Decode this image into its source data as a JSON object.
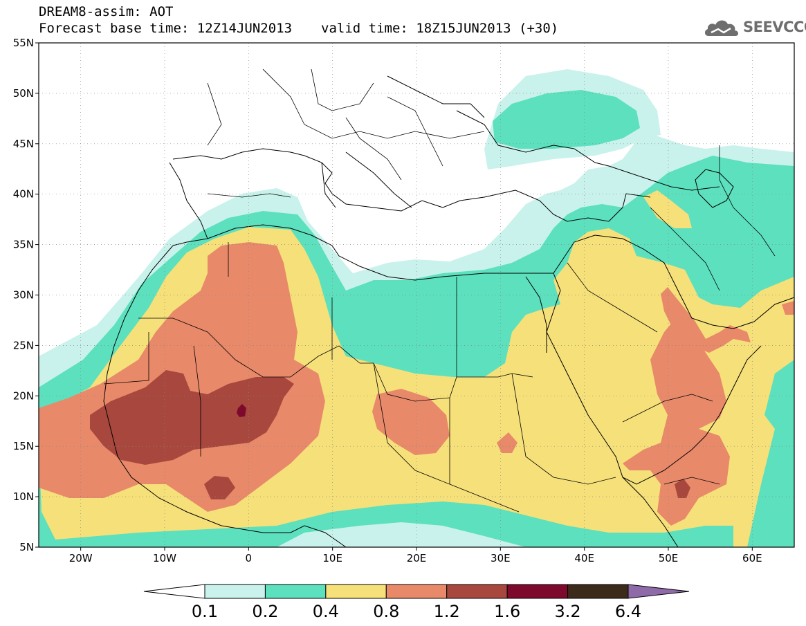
{
  "header": {
    "title_line1": "DREAM8-assim: AOT",
    "forecast_base": "Forecast base time: 12Z14JUN2013",
    "valid_time": "valid time: 18Z15JUN2013 (+30)"
  },
  "logo": {
    "text": "SEEVCCC",
    "icon": "cloud-icon"
  },
  "map": {
    "lon_range": [
      -25,
      65
    ],
    "lat_range": [
      5,
      55
    ],
    "lat_ticks": [
      {
        "value": 55,
        "label": "55N"
      },
      {
        "value": 50,
        "label": "50N"
      },
      {
        "value": 45,
        "label": "45N"
      },
      {
        "value": 40,
        "label": "40N"
      },
      {
        "value": 35,
        "label": "35N"
      },
      {
        "value": 30,
        "label": "30N"
      },
      {
        "value": 25,
        "label": "25N"
      },
      {
        "value": 20,
        "label": "20N"
      },
      {
        "value": 15,
        "label": "15N"
      },
      {
        "value": 10,
        "label": "10N"
      },
      {
        "value": 5,
        "label": "5N"
      }
    ],
    "lon_ticks": [
      {
        "value": -20,
        "label": "20W"
      },
      {
        "value": -10,
        "label": "10W"
      },
      {
        "value": 0,
        "label": "0"
      },
      {
        "value": 10,
        "label": "10E"
      },
      {
        "value": 20,
        "label": "20E"
      },
      {
        "value": 30,
        "label": "30E"
      },
      {
        "value": 40,
        "label": "40E"
      },
      {
        "value": 50,
        "label": "50E"
      },
      {
        "value": 60,
        "label": "60E"
      }
    ],
    "grid": true
  },
  "colorbar": {
    "levels": [
      "0.1",
      "0.2",
      "0.4",
      "0.8",
      "1.2",
      "1.6",
      "3.2",
      "6.4"
    ],
    "colors": [
      "#ffffff",
      "#c8f2eb",
      "#5ce0bd",
      "#f6e07a",
      "#e8896a",
      "#a8473d",
      "#7d0a2c",
      "#3c2a1b",
      "#8e6aa8"
    ]
  }
}
